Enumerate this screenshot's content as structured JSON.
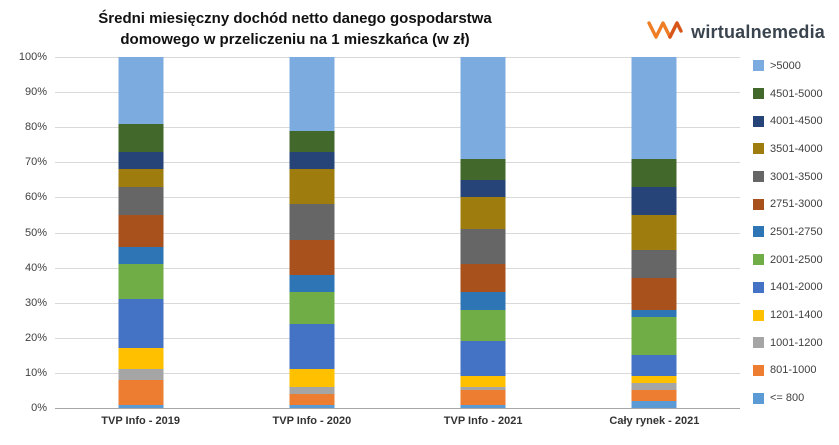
{
  "title": {
    "line1": "Średni miesięczny dochód netto danego gospodarstwa",
    "line2": "domowego w przeliczeniu na 1 mieszkańca (w zł)"
  },
  "logo": {
    "text": "wirtualnemedia",
    "icon": "wm-zigzag-icon",
    "icon_color": "#EF7D24",
    "text_color": "#3A444E"
  },
  "chart_data": {
    "type": "bar",
    "stacked": true,
    "percent": true,
    "title": "Średni miesięczny dochód netto danego gospodarstwa domowego w przeliczeniu na 1 mieszkańca (w zł)",
    "categories": [
      "TVP Info - 2019",
      "TVP Info - 2020",
      "TVP Info - 2021",
      "Cały rynek - 2021"
    ],
    "series": [
      {
        "name": "<= 800",
        "color": "#5B9BD5",
        "values": [
          1,
          1,
          1,
          2
        ]
      },
      {
        "name": "801-1000",
        "color": "#ED7D31",
        "values": [
          7,
          3,
          4,
          3
        ]
      },
      {
        "name": "1001-1200",
        "color": "#A5A5A5",
        "values": [
          3,
          2,
          1,
          2
        ]
      },
      {
        "name": "1201-1400",
        "color": "#FFC000",
        "values": [
          6,
          5,
          3,
          2
        ]
      },
      {
        "name": "1401-2000",
        "color": "#4472C4",
        "values": [
          14,
          13,
          10,
          6
        ]
      },
      {
        "name": "2001-2500",
        "color": "#70AD47",
        "values": [
          10,
          9,
          9,
          11
        ]
      },
      {
        "name": "2501-2750",
        "color": "#2E75B6",
        "values": [
          5,
          5,
          5,
          2
        ]
      },
      {
        "name": "2751-3000",
        "color": "#A9511D",
        "values": [
          9,
          10,
          8,
          9
        ]
      },
      {
        "name": "3001-3500",
        "color": "#666666",
        "values": [
          8,
          10,
          10,
          8
        ]
      },
      {
        "name": "3501-4000",
        "color": "#9E7C0E",
        "values": [
          5,
          10,
          9,
          10
        ]
      },
      {
        "name": "4001-4500",
        "color": "#264478",
        "values": [
          5,
          5,
          5,
          8
        ]
      },
      {
        "name": "4501-5000",
        "color": "#42682B",
        "values": [
          8,
          6,
          6,
          8
        ]
      },
      {
        "name": ">5000",
        "color": "#7CACDF",
        "values": [
          19,
          21,
          29,
          29
        ]
      }
    ],
    "y_ticks": [
      "100%",
      "90%",
      "80%",
      "70%",
      "60%",
      "50%",
      "40%",
      "30%",
      "20%",
      "10%",
      "0%"
    ],
    "ylim": [
      0,
      100
    ],
    "grid": "horizontal",
    "legend_position": "right",
    "legend_order_top_to_bottom": [
      ">5000",
      "4501-5000",
      "4001-4500",
      "3501-4000",
      "3001-3500",
      "2751-3000",
      "2501-2750",
      "2001-2500",
      "1401-2000",
      "1201-1400",
      "1001-1200",
      "801-1000",
      "<= 800"
    ]
  }
}
